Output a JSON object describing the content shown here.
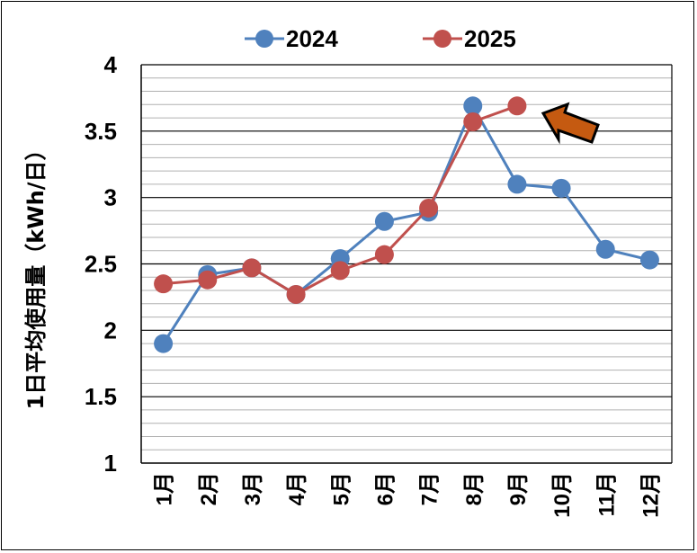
{
  "chart_data": {
    "type": "line",
    "categories": [
      "1月",
      "2月",
      "3月",
      "4月",
      "5月",
      "6月",
      "7月",
      "8月",
      "9月",
      "10月",
      "11月",
      "12月"
    ],
    "series": [
      {
        "name": "2024",
        "color": "#4f81bd",
        "values": [
          1.9,
          2.42,
          2.47,
          2.27,
          2.54,
          2.82,
          2.89,
          3.69,
          3.1,
          3.07,
          2.61,
          2.53
        ]
      },
      {
        "name": "2025",
        "color": "#c0504d",
        "values": [
          2.35,
          2.38,
          2.47,
          2.27,
          2.45,
          2.57,
          2.92,
          3.57,
          3.69,
          null,
          null,
          null
        ]
      }
    ],
    "ylabel": "1日平均使用量（kWh/日）",
    "ylim": [
      1,
      4
    ],
    "yticks": [
      "1",
      "1.5",
      "2",
      "2.5",
      "3",
      "3.5",
      "4"
    ],
    "major_grid_step": 0.5,
    "minor_grid_step": 0.1,
    "legend_position": "top",
    "annotation": {
      "type": "arrow",
      "color": "#c55a11",
      "points_to": "9月 2025"
    }
  }
}
